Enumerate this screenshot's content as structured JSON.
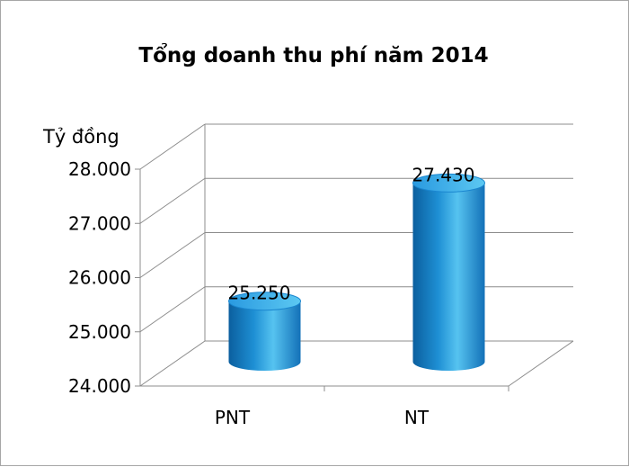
{
  "chart_data": {
    "type": "bar",
    "style": "3d-cylinder",
    "title": "Tổng doanh thu phí năm 2014",
    "ylabel": "Tỷ đồng",
    "xlabel": "",
    "categories": [
      "PNT",
      "NT"
    ],
    "values": [
      25250,
      27430
    ],
    "data_labels": [
      "25.250",
      "27.430"
    ],
    "ylim": [
      24000,
      28000
    ],
    "yticks": [
      24000,
      25000,
      26000,
      27000,
      28000
    ],
    "ytick_labels": [
      "24.000",
      "25.000",
      "26.000",
      "27.000",
      "28.000"
    ],
    "grid": true,
    "legend": "none",
    "colors": {
      "bar_base": "#1e8fd4",
      "bar_light": "#56c3f0",
      "bar_dark": "#0b5f9e",
      "grid": "#8c8c8c"
    }
  }
}
